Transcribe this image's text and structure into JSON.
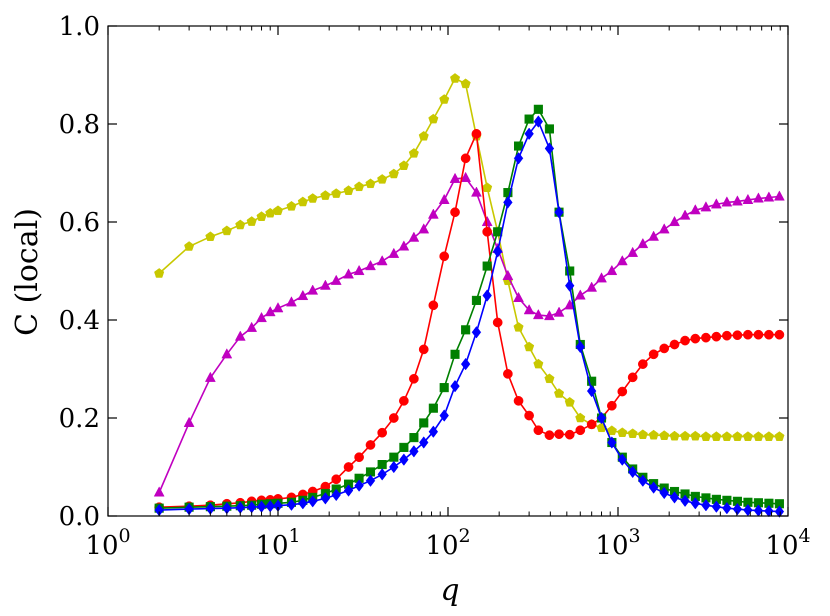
{
  "chart_data": {
    "type": "line",
    "x_scale": "log",
    "xlim": [
      1,
      10000
    ],
    "ylim": [
      0.0,
      1.0
    ],
    "xlabel": "q",
    "ylabel": "C (local)",
    "x_ticks": [
      {
        "value": 1,
        "base": "10",
        "exp": "0"
      },
      {
        "value": 10,
        "base": "10",
        "exp": "1"
      },
      {
        "value": 100,
        "base": "10",
        "exp": "2"
      },
      {
        "value": 1000,
        "base": "10",
        "exp": "3"
      },
      {
        "value": 10000,
        "base": "10",
        "exp": "4"
      }
    ],
    "y_ticks": [
      {
        "value": 0.0,
        "label": "0.0"
      },
      {
        "value": 0.2,
        "label": "0.2"
      },
      {
        "value": 0.4,
        "label": "0.4"
      },
      {
        "value": 0.6,
        "label": "0.6"
      },
      {
        "value": 0.8,
        "label": "0.8"
      },
      {
        "value": 1.0,
        "label": "1.0"
      }
    ],
    "grid": false,
    "series": [
      {
        "color": "#c8c800",
        "marker": "pentagon",
        "points": [
          [
            2,
            0.495
          ],
          [
            3,
            0.55
          ],
          [
            4,
            0.57
          ],
          [
            5,
            0.582
          ],
          [
            6,
            0.594
          ],
          [
            7,
            0.601
          ],
          [
            8,
            0.611
          ],
          [
            9,
            0.618
          ],
          [
            10,
            0.623
          ],
          [
            12,
            0.632
          ],
          [
            14,
            0.641
          ],
          [
            16,
            0.648
          ],
          [
            19,
            0.654
          ],
          [
            22,
            0.658
          ],
          [
            26,
            0.664
          ],
          [
            30,
            0.672
          ],
          [
            35,
            0.678
          ],
          [
            41,
            0.687
          ],
          [
            48,
            0.698
          ],
          [
            55,
            0.715
          ],
          [
            63,
            0.74
          ],
          [
            72,
            0.775
          ],
          [
            82,
            0.81
          ],
          [
            95,
            0.85
          ],
          [
            110,
            0.893
          ],
          [
            127,
            0.882
          ],
          [
            147,
            0.775
          ],
          [
            170,
            0.67
          ],
          [
            196,
            0.58
          ],
          [
            225,
            0.48
          ],
          [
            260,
            0.385
          ],
          [
            300,
            0.345
          ],
          [
            340,
            0.31
          ],
          [
            395,
            0.28
          ],
          [
            450,
            0.25
          ],
          [
            520,
            0.232
          ],
          [
            600,
            0.2
          ],
          [
            700,
            0.187
          ],
          [
            800,
            0.18
          ],
          [
            920,
            0.174
          ],
          [
            1060,
            0.17
          ],
          [
            1220,
            0.168
          ],
          [
            1400,
            0.166
          ],
          [
            1620,
            0.165
          ],
          [
            1870,
            0.164
          ],
          [
            2150,
            0.163
          ],
          [
            2480,
            0.163
          ],
          [
            2850,
            0.163
          ],
          [
            3290,
            0.162
          ],
          [
            3790,
            0.162
          ],
          [
            4370,
            0.162
          ],
          [
            5040,
            0.162
          ],
          [
            5810,
            0.162
          ],
          [
            6700,
            0.162
          ],
          [
            7720,
            0.162
          ],
          [
            8900,
            0.162
          ]
        ]
      },
      {
        "color": "#c000c0",
        "marker": "triangle",
        "points": [
          [
            2,
            0.048
          ],
          [
            3,
            0.19
          ],
          [
            4,
            0.282
          ],
          [
            5,
            0.33
          ],
          [
            6,
            0.366
          ],
          [
            7,
            0.384
          ],
          [
            8,
            0.404
          ],
          [
            9,
            0.416
          ],
          [
            10,
            0.424
          ],
          [
            12,
            0.436
          ],
          [
            14,
            0.449
          ],
          [
            16,
            0.46
          ],
          [
            19,
            0.47
          ],
          [
            22,
            0.48
          ],
          [
            26,
            0.493
          ],
          [
            30,
            0.5
          ],
          [
            35,
            0.51
          ],
          [
            41,
            0.52
          ],
          [
            48,
            0.535
          ],
          [
            55,
            0.55
          ],
          [
            63,
            0.568
          ],
          [
            72,
            0.585
          ],
          [
            82,
            0.615
          ],
          [
            95,
            0.645
          ],
          [
            110,
            0.688
          ],
          [
            127,
            0.69
          ],
          [
            147,
            0.66
          ],
          [
            170,
            0.6
          ],
          [
            196,
            0.545
          ],
          [
            225,
            0.49
          ],
          [
            260,
            0.445
          ],
          [
            300,
            0.42
          ],
          [
            340,
            0.41
          ],
          [
            395,
            0.408
          ],
          [
            450,
            0.415
          ],
          [
            520,
            0.43
          ],
          [
            600,
            0.45
          ],
          [
            700,
            0.466
          ],
          [
            800,
            0.485
          ],
          [
            920,
            0.5
          ],
          [
            1060,
            0.52
          ],
          [
            1220,
            0.537
          ],
          [
            1400,
            0.555
          ],
          [
            1620,
            0.57
          ],
          [
            1870,
            0.585
          ],
          [
            2150,
            0.6
          ],
          [
            2480,
            0.613
          ],
          [
            2850,
            0.624
          ],
          [
            3290,
            0.63
          ],
          [
            3790,
            0.636
          ],
          [
            4370,
            0.64
          ],
          [
            5040,
            0.642
          ],
          [
            5810,
            0.645
          ],
          [
            6700,
            0.648
          ],
          [
            7720,
            0.65
          ],
          [
            8900,
            0.652
          ]
        ]
      },
      {
        "color": "#ff0000",
        "marker": "circle",
        "points": [
          [
            2,
            0.018
          ],
          [
            3,
            0.02
          ],
          [
            4,
            0.022
          ],
          [
            5,
            0.025
          ],
          [
            6,
            0.027
          ],
          [
            7,
            0.03
          ],
          [
            8,
            0.032
          ],
          [
            9,
            0.033
          ],
          [
            10,
            0.035
          ],
          [
            12,
            0.038
          ],
          [
            14,
            0.044
          ],
          [
            16,
            0.05
          ],
          [
            19,
            0.06
          ],
          [
            22,
            0.075
          ],
          [
            26,
            0.1
          ],
          [
            30,
            0.12
          ],
          [
            35,
            0.145
          ],
          [
            41,
            0.17
          ],
          [
            48,
            0.2
          ],
          [
            55,
            0.235
          ],
          [
            63,
            0.28
          ],
          [
            72,
            0.34
          ],
          [
            82,
            0.43
          ],
          [
            95,
            0.53
          ],
          [
            110,
            0.62
          ],
          [
            127,
            0.73
          ],
          [
            147,
            0.78
          ],
          [
            170,
            0.58
          ],
          [
            196,
            0.395
          ],
          [
            225,
            0.29
          ],
          [
            260,
            0.235
          ],
          [
            300,
            0.205
          ],
          [
            340,
            0.175
          ],
          [
            395,
            0.165
          ],
          [
            450,
            0.167
          ],
          [
            520,
            0.166
          ],
          [
            600,
            0.175
          ],
          [
            700,
            0.187
          ],
          [
            800,
            0.2
          ],
          [
            920,
            0.225
          ],
          [
            1060,
            0.254
          ],
          [
            1220,
            0.283
          ],
          [
            1400,
            0.31
          ],
          [
            1620,
            0.33
          ],
          [
            1870,
            0.342
          ],
          [
            2150,
            0.35
          ],
          [
            2480,
            0.358
          ],
          [
            2850,
            0.362
          ],
          [
            3290,
            0.364
          ],
          [
            3790,
            0.366
          ],
          [
            4370,
            0.368
          ],
          [
            5040,
            0.369
          ],
          [
            5810,
            0.37
          ],
          [
            6700,
            0.37
          ],
          [
            7720,
            0.37
          ],
          [
            8900,
            0.37
          ]
        ]
      },
      {
        "color": "#008000",
        "marker": "square",
        "points": [
          [
            2,
            0.016
          ],
          [
            3,
            0.018
          ],
          [
            4,
            0.019
          ],
          [
            5,
            0.02
          ],
          [
            6,
            0.021
          ],
          [
            7,
            0.022
          ],
          [
            8,
            0.024
          ],
          [
            9,
            0.025
          ],
          [
            10,
            0.026
          ],
          [
            12,
            0.028
          ],
          [
            14,
            0.032
          ],
          [
            16,
            0.038
          ],
          [
            19,
            0.046
          ],
          [
            22,
            0.055
          ],
          [
            26,
            0.065
          ],
          [
            30,
            0.077
          ],
          [
            35,
            0.09
          ],
          [
            41,
            0.105
          ],
          [
            48,
            0.12
          ],
          [
            55,
            0.14
          ],
          [
            63,
            0.16
          ],
          [
            72,
            0.19
          ],
          [
            82,
            0.22
          ],
          [
            95,
            0.262
          ],
          [
            110,
            0.33
          ],
          [
            127,
            0.38
          ],
          [
            147,
            0.44
          ],
          [
            170,
            0.51
          ],
          [
            196,
            0.58
          ],
          [
            225,
            0.66
          ],
          [
            260,
            0.755
          ],
          [
            300,
            0.81
          ],
          [
            340,
            0.83
          ],
          [
            395,
            0.79
          ],
          [
            450,
            0.62
          ],
          [
            520,
            0.5
          ],
          [
            600,
            0.35
          ],
          [
            700,
            0.275
          ],
          [
            800,
            0.2
          ],
          [
            920,
            0.15
          ],
          [
            1060,
            0.12
          ],
          [
            1220,
            0.096
          ],
          [
            1400,
            0.079
          ],
          [
            1620,
            0.066
          ],
          [
            1870,
            0.057
          ],
          [
            2150,
            0.05
          ],
          [
            2480,
            0.045
          ],
          [
            2850,
            0.04
          ],
          [
            3290,
            0.037
          ],
          [
            3790,
            0.034
          ],
          [
            4370,
            0.032
          ],
          [
            5040,
            0.03
          ],
          [
            5810,
            0.028
          ],
          [
            6700,
            0.027
          ],
          [
            7720,
            0.026
          ],
          [
            8900,
            0.025
          ]
        ]
      },
      {
        "color": "#0000ff",
        "marker": "diamond",
        "points": [
          [
            2,
            0.012
          ],
          [
            3,
            0.014
          ],
          [
            4,
            0.015
          ],
          [
            5,
            0.016
          ],
          [
            6,
            0.017
          ],
          [
            7,
            0.018
          ],
          [
            8,
            0.019
          ],
          [
            9,
            0.02
          ],
          [
            10,
            0.021
          ],
          [
            12,
            0.023
          ],
          [
            14,
            0.026
          ],
          [
            16,
            0.03
          ],
          [
            19,
            0.036
          ],
          [
            22,
            0.043
          ],
          [
            26,
            0.052
          ],
          [
            30,
            0.062
          ],
          [
            35,
            0.072
          ],
          [
            41,
            0.085
          ],
          [
            48,
            0.1
          ],
          [
            55,
            0.115
          ],
          [
            63,
            0.132
          ],
          [
            72,
            0.15
          ],
          [
            82,
            0.172
          ],
          [
            95,
            0.205
          ],
          [
            110,
            0.265
          ],
          [
            127,
            0.31
          ],
          [
            147,
            0.375
          ],
          [
            170,
            0.45
          ],
          [
            196,
            0.54
          ],
          [
            225,
            0.64
          ],
          [
            260,
            0.73
          ],
          [
            300,
            0.78
          ],
          [
            340,
            0.805
          ],
          [
            395,
            0.75
          ],
          [
            450,
            0.62
          ],
          [
            520,
            0.47
          ],
          [
            600,
            0.345
          ],
          [
            700,
            0.255
          ],
          [
            800,
            0.2
          ],
          [
            920,
            0.15
          ],
          [
            1060,
            0.115
          ],
          [
            1220,
            0.09
          ],
          [
            1400,
            0.072
          ],
          [
            1620,
            0.058
          ],
          [
            1870,
            0.047
          ],
          [
            2150,
            0.038
          ],
          [
            2480,
            0.031
          ],
          [
            2850,
            0.026
          ],
          [
            3290,
            0.022
          ],
          [
            3790,
            0.019
          ],
          [
            4370,
            0.016
          ],
          [
            5040,
            0.014
          ],
          [
            5810,
            0.012
          ],
          [
            6700,
            0.011
          ],
          [
            7720,
            0.01
          ],
          [
            8900,
            0.009
          ]
        ]
      }
    ]
  }
}
